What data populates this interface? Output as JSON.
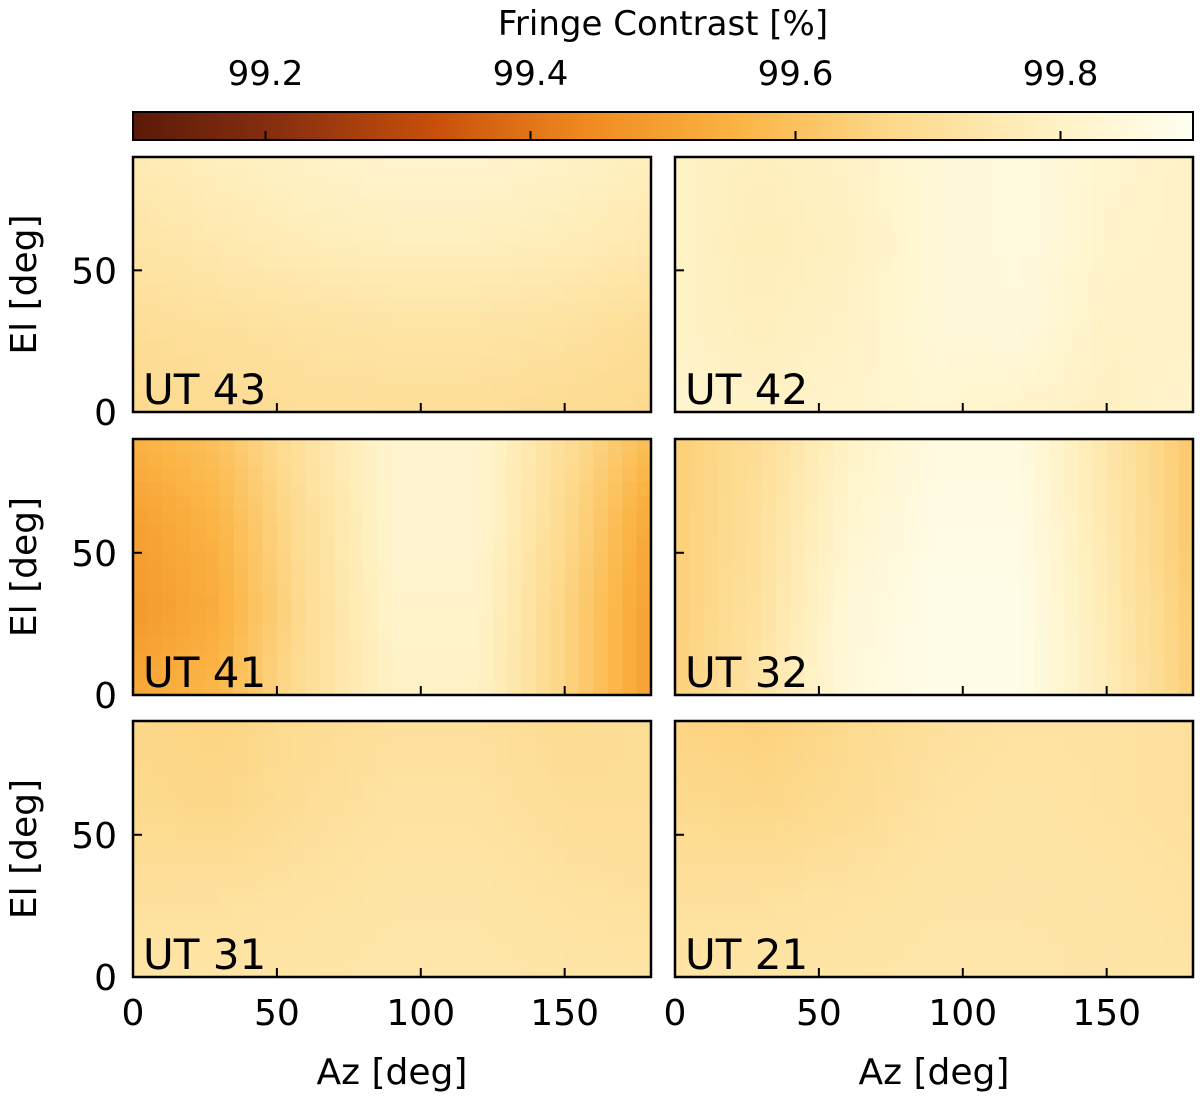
{
  "chart_data": {
    "type": "heatmap",
    "colorbar": {
      "title": "Fringe Contrast [%]",
      "ticks": [
        "99.2",
        "99.4",
        "99.6",
        "99.8"
      ],
      "tick_values": [
        99.2,
        99.4,
        99.6,
        99.8
      ],
      "range": [
        99.1,
        99.9
      ],
      "colormap": [
        "#5a1a08",
        "#8a3010",
        "#c8500a",
        "#f08a20",
        "#fbb444",
        "#fdd88a",
        "#fff0c0",
        "#fffff0"
      ],
      "orientation": "horizontal",
      "placement": "top"
    },
    "x_axis": {
      "label": "Az [deg]",
      "range": [
        0,
        180
      ],
      "ticks": [
        "0",
        "50",
        "100",
        "150"
      ],
      "tick_values": [
        0,
        50,
        100,
        150
      ]
    },
    "y_axis": {
      "label": "El [deg]",
      "range": [
        0,
        90
      ],
      "ticks": [
        "0",
        "50"
      ],
      "tick_values": [
        0,
        50
      ]
    },
    "panels": [
      {
        "label": "UT 43",
        "az": [
          0,
          30,
          60,
          90,
          120,
          150,
          180
        ],
        "el": [
          90,
          60,
          30,
          0
        ],
        "values": [
          [
            99.76,
            99.78,
            99.8,
            99.82,
            99.82,
            99.8,
            99.78
          ],
          [
            99.73,
            99.75,
            99.77,
            99.78,
            99.78,
            99.77,
            99.75
          ],
          [
            99.7,
            99.71,
            99.72,
            99.73,
            99.73,
            99.72,
            99.7
          ],
          [
            99.68,
            99.69,
            99.7,
            99.7,
            99.7,
            99.69,
            99.68
          ]
        ]
      },
      {
        "label": "UT 42",
        "az": [
          0,
          30,
          60,
          90,
          120,
          150,
          180
        ],
        "el": [
          90,
          60,
          30,
          0
        ],
        "values": [
          [
            99.8,
            99.78,
            99.8,
            99.84,
            99.86,
            99.82,
            99.8
          ],
          [
            99.8,
            99.77,
            99.79,
            99.84,
            99.86,
            99.81,
            99.8
          ],
          [
            99.8,
            99.78,
            99.8,
            99.84,
            99.85,
            99.8,
            99.8
          ],
          [
            99.82,
            99.8,
            99.81,
            99.83,
            99.81,
            99.79,
            99.82
          ]
        ]
      },
      {
        "label": "UT 41",
        "az": [
          0,
          30,
          60,
          90,
          120,
          150,
          180
        ],
        "el": [
          90,
          60,
          30,
          0
        ],
        "values": [
          [
            99.55,
            99.6,
            99.72,
            99.82,
            99.82,
            99.7,
            99.58
          ],
          [
            99.5,
            99.56,
            99.7,
            99.82,
            99.82,
            99.68,
            99.52
          ],
          [
            99.48,
            99.54,
            99.69,
            99.81,
            99.81,
            99.66,
            99.5
          ],
          [
            99.52,
            99.57,
            99.7,
            99.8,
            99.8,
            99.66,
            99.5
          ]
        ]
      },
      {
        "label": "UT 32",
        "az": [
          0,
          30,
          60,
          90,
          120,
          150,
          180
        ],
        "el": [
          90,
          60,
          30,
          0
        ],
        "values": [
          [
            99.64,
            99.7,
            99.8,
            99.86,
            99.86,
            99.74,
            99.62
          ],
          [
            99.64,
            99.71,
            99.82,
            99.87,
            99.87,
            99.75,
            99.62
          ],
          [
            99.64,
            99.72,
            99.84,
            99.88,
            99.88,
            99.76,
            99.63
          ],
          [
            99.65,
            99.73,
            99.85,
            99.88,
            99.88,
            99.77,
            99.64
          ]
        ]
      },
      {
        "label": "UT 31",
        "az": [
          0,
          30,
          60,
          90,
          120,
          150,
          180
        ],
        "el": [
          90,
          60,
          30,
          0
        ],
        "values": [
          [
            99.67,
            99.66,
            99.69,
            99.71,
            99.71,
            99.69,
            99.7
          ],
          [
            99.68,
            99.67,
            99.7,
            99.72,
            99.72,
            99.7,
            99.7
          ],
          [
            99.71,
            99.71,
            99.72,
            99.73,
            99.73,
            99.72,
            99.71
          ],
          [
            99.73,
            99.73,
            99.73,
            99.74,
            99.74,
            99.73,
            99.73
          ]
        ]
      },
      {
        "label": "UT 21",
        "az": [
          0,
          30,
          60,
          90,
          120,
          150,
          180
        ],
        "el": [
          90,
          60,
          30,
          0
        ],
        "values": [
          [
            99.66,
            99.65,
            99.68,
            99.71,
            99.72,
            99.72,
            99.71
          ],
          [
            99.68,
            99.67,
            99.69,
            99.72,
            99.73,
            99.72,
            99.71
          ],
          [
            99.71,
            99.71,
            99.72,
            99.73,
            99.73,
            99.73,
            99.72
          ],
          [
            99.73,
            99.73,
            99.73,
            99.74,
            99.74,
            99.73,
            99.73
          ]
        ]
      }
    ]
  }
}
